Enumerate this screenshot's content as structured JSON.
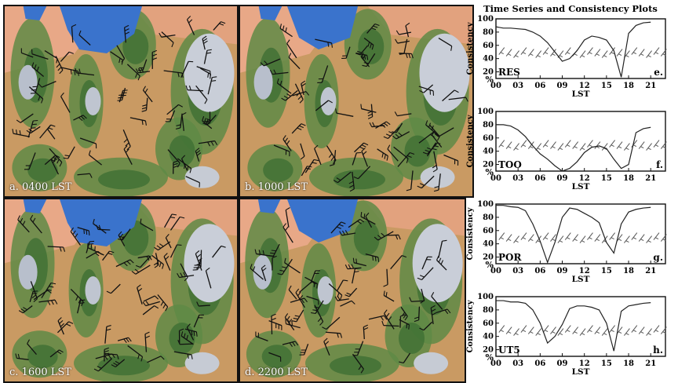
{
  "maps": [
    {
      "label": "a. 0400 LST"
    },
    {
      "label": "b. 1000 LST"
    },
    {
      "label": "c. 1600 LST"
    },
    {
      "label": "d. 2200 LST"
    }
  ],
  "timeseries": {
    "title": "Time Series and Consistency Plots",
    "ylabel": "Consistency",
    "percent": "%",
    "xlabel": "LST",
    "yticks": [
      "100",
      "80",
      "60",
      "40",
      "20"
    ],
    "xticks": [
      "00",
      "03",
      "06",
      "09",
      "12",
      "15",
      "18",
      "21"
    ],
    "colors": {
      "line": "#222222",
      "barb": "#555555"
    },
    "panels": [
      {
        "station": "RES",
        "panel": "e.",
        "consistency": [
          88,
          86,
          86,
          85,
          84,
          80,
          74,
          64,
          50,
          36,
          40,
          52,
          68,
          74,
          72,
          68,
          52,
          12,
          78,
          90,
          94,
          95
        ]
      },
      {
        "station": "TOO",
        "panel": "f.",
        "consistency": [
          80,
          80,
          78,
          72,
          62,
          48,
          36,
          28,
          18,
          10,
          14,
          24,
          38,
          46,
          48,
          44,
          28,
          14,
          20,
          68,
          74,
          76
        ]
      },
      {
        "station": "POR",
        "panel": "g.",
        "consistency": [
          98,
          98,
          96,
          95,
          90,
          70,
          44,
          12,
          42,
          80,
          94,
          92,
          86,
          80,
          72,
          42,
          26,
          70,
          88,
          92,
          94,
          95
        ]
      },
      {
        "station": "UT5",
        "panel": "h.",
        "consistency": [
          94,
          94,
          92,
          92,
          90,
          80,
          60,
          30,
          40,
          58,
          82,
          86,
          86,
          84,
          80,
          60,
          18,
          78,
          86,
          88,
          90,
          91
        ]
      }
    ]
  }
}
